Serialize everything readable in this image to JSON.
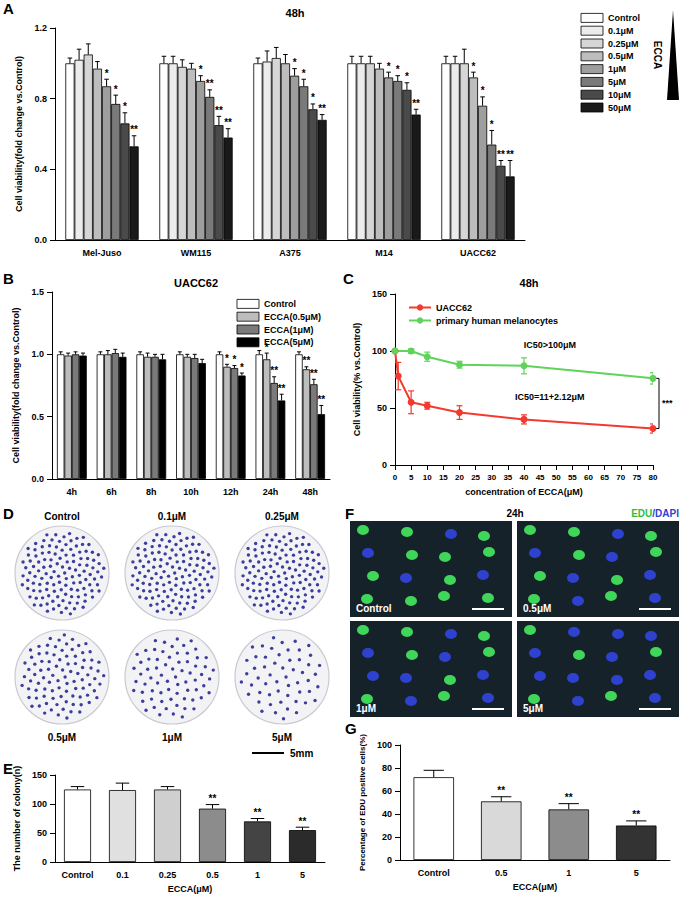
{
  "chart_data": [
    {
      "panel": "A",
      "type": "bar",
      "title": "48h",
      "ylabel": "Cell viability(fold change vs.Control)",
      "categories": [
        "Mel-Juso",
        "WM115",
        "A375",
        "M14",
        "UACC62"
      ],
      "ylim": [
        0,
        1.2
      ],
      "yticks": [
        {
          "value": 0,
          "label": "0.0"
        },
        0.4,
        0.8,
        1.2
      ],
      "grid": false,
      "legend": "right",
      "legend_title": "ECCA",
      "series": [
        {
          "name": "Control",
          "color": "#ffffff",
          "values": [
            1,
            1,
            1,
            1,
            1
          ],
          "errors": [
            0.03,
            0.04,
            0.03,
            0.04,
            0.04
          ],
          "annotations": [
            null,
            null,
            null,
            null,
            null
          ]
        },
        {
          "name": "0.1μM",
          "color": "#ececec",
          "values": [
            1.02,
            1.0,
            1.01,
            1.0,
            1.0
          ],
          "errors": [
            0.06,
            0.04,
            0.06,
            0.04,
            0.04
          ],
          "annotations": [
            null,
            null,
            null,
            null,
            null
          ]
        },
        {
          "name": "0.25μM",
          "color": "#d6d6d6",
          "values": [
            1.05,
            0.98,
            1.03,
            1.0,
            1.0
          ],
          "errors": [
            0.06,
            0.04,
            0.06,
            0.04,
            0.08
          ],
          "annotations": [
            null,
            null,
            null,
            null,
            null
          ]
        },
        {
          "name": "0.5μM",
          "color": "#bdbdbd",
          "values": [
            0.97,
            0.97,
            1.0,
            0.97,
            0.92
          ],
          "errors": [
            0.04,
            0.03,
            0.05,
            0.03,
            0.03
          ],
          "annotations": [
            null,
            null,
            null,
            null,
            "*"
          ]
        },
        {
          "name": "1μM",
          "color": "#9e9e9e",
          "values": [
            0.87,
            0.9,
            0.93,
            0.92,
            0.76
          ],
          "errors": [
            0.04,
            0.03,
            0.04,
            0.03,
            0.05
          ],
          "annotations": [
            "*",
            "*",
            "*",
            "*",
            "*"
          ]
        },
        {
          "name": "5μM",
          "color": "#7a7a7a",
          "values": [
            0.77,
            0.81,
            0.87,
            0.9,
            0.54
          ],
          "errors": [
            0.05,
            0.04,
            0.04,
            0.03,
            0.08
          ],
          "annotations": [
            "*",
            "**",
            "*",
            "*",
            "*"
          ]
        },
        {
          "name": "10μM",
          "color": "#4a4a4a",
          "values": [
            0.66,
            0.65,
            0.74,
            0.85,
            0.42
          ],
          "errors": [
            0.06,
            0.05,
            0.03,
            0.04,
            0.03
          ],
          "annotations": [
            "*",
            "**",
            "*",
            "*",
            "**"
          ]
        },
        {
          "name": "50μM",
          "color": "#1a1a1a",
          "values": [
            0.53,
            0.58,
            0.68,
            0.71,
            0.36
          ],
          "errors": [
            0.06,
            0.05,
            0.03,
            0.03,
            0.09
          ],
          "annotations": [
            "**",
            "**",
            "**",
            "**",
            "**"
          ]
        }
      ]
    },
    {
      "panel": "B",
      "type": "bar",
      "title": "UACC62",
      "ylabel": "Cell viability(fold change vs.Control)",
      "categories": [
        "4h",
        "6h",
        "8h",
        "10h",
        "12h",
        "24h",
        "48h"
      ],
      "ylim": [
        0,
        1.5
      ],
      "yticks": [
        {
          "value": 0,
          "label": "0.0"
        },
        0.5,
        {
          "value": 1,
          "label": "1.0"
        },
        1.5
      ],
      "grid": false,
      "legend": "top-right",
      "series": [
        {
          "name": "Control",
          "color": "#ffffff",
          "values": [
            1,
            1,
            1,
            1,
            1,
            1,
            1
          ],
          "errors": [
            0.02,
            0.02,
            0.02,
            0.02,
            0.02,
            0.03,
            0.02
          ],
          "annotations": [
            null,
            null,
            null,
            null,
            null,
            null,
            null
          ]
        },
        {
          "name": "ECCA(0.5μM)",
          "color": "#bdbdbd",
          "values": [
            0.99,
            1.0,
            0.98,
            0.98,
            0.9,
            0.96,
            0.88
          ],
          "errors": [
            0.02,
            0.03,
            0.03,
            0.02,
            0.02,
            0.05,
            0.02
          ],
          "annotations": [
            null,
            null,
            null,
            null,
            "*",
            "*",
            "**"
          ]
        },
        {
          "name": "ECCA(1μM)",
          "color": "#7a7a7a",
          "values": [
            1.0,
            1.01,
            0.98,
            0.97,
            0.89,
            0.77,
            0.76
          ],
          "errors": [
            0.02,
            0.03,
            0.02,
            0.03,
            0.02,
            0.05,
            0.04
          ],
          "annotations": [
            null,
            null,
            null,
            null,
            "*",
            "**",
            "**"
          ]
        },
        {
          "name": "ECCA(5μM)",
          "color": "#000000",
          "values": [
            0.99,
            0.98,
            0.96,
            0.93,
            0.83,
            0.63,
            0.52
          ],
          "errors": [
            0.02,
            0.03,
            0.04,
            0.03,
            0.02,
            0.05,
            0.07
          ],
          "annotations": [
            null,
            null,
            null,
            null,
            "*",
            "**",
            "**"
          ]
        }
      ]
    },
    {
      "panel": "C",
      "type": "line",
      "title": "48h",
      "xlabel": "concentration of ECCA(μM)",
      "ylabel": "Cell viability(% vs.Control)",
      "xlim": [
        0,
        80
      ],
      "xticks": [
        0,
        5,
        10,
        15,
        20,
        25,
        30,
        35,
        40,
        45,
        50,
        55,
        60,
        65,
        70,
        75,
        80
      ],
      "ylim": [
        0,
        150
      ],
      "yticks": [
        0,
        50,
        100,
        150
      ],
      "grid": false,
      "legend": "top-left",
      "marker": "circle",
      "annotations": [
        "IC50>100μM",
        "IC50=11+2.12μM",
        "***"
      ],
      "series": [
        {
          "name": "UACC62",
          "color": "#f23a2f",
          "x": [
            0,
            1,
            5,
            10,
            20,
            40,
            80
          ],
          "values": [
            100,
            78,
            55,
            52,
            46,
            40,
            32
          ],
          "errors": [
            0,
            12,
            10,
            3,
            6,
            4,
            4
          ]
        },
        {
          "name": "primary human melanocytes",
          "color": "#5fd35a",
          "x": [
            0,
            5,
            10,
            20,
            40,
            80
          ],
          "values": [
            100,
            100,
            95,
            88,
            87,
            76
          ],
          "errors": [
            0,
            2,
            4,
            3,
            7,
            5
          ]
        }
      ]
    },
    {
      "panel": "E",
      "type": "bar",
      "ylabel": "The number of colony(n)",
      "xlabel": "ECCA(μM)",
      "categories": [
        "Control",
        "0.1",
        "0.25",
        "0.5",
        "1",
        "5"
      ],
      "values": [
        125,
        124,
        125,
        92,
        70,
        55
      ],
      "errors": [
        5,
        12,
        5,
        7,
        5,
        5
      ],
      "annotations": [
        null,
        null,
        null,
        "**",
        "**",
        "**"
      ],
      "colors": [
        "#ffffff",
        "#e0e0e0",
        "#cfcfcf",
        "#8c8c8c",
        "#444444",
        "#2b2b2b"
      ],
      "ylim": [
        0,
        150
      ],
      "yticks": [
        0,
        50,
        100,
        150
      ],
      "grid": false
    },
    {
      "panel": "G",
      "type": "bar",
      "ylabel": "Percentage of EDU positive cells(%)",
      "xlabel": "ECCA(μM)",
      "categories": [
        "Control",
        "0.5",
        "1",
        "5"
      ],
      "values": [
        72,
        51,
        44,
        30
      ],
      "errors": [
        6,
        4,
        5,
        4
      ],
      "annotations": [
        null,
        "**",
        "**",
        "**"
      ],
      "colors": [
        "#ffffff",
        "#d9d9d9",
        "#8c8c8c",
        "#333333"
      ],
      "ylim": [
        0,
        100
      ],
      "yticks": [
        0,
        20,
        40,
        60,
        80,
        100
      ],
      "grid": false
    }
  ],
  "colony_plates": {
    "panel": "D",
    "labels": [
      "Control",
      "0.1μM",
      "0.25μM",
      "0.5μM",
      "1μM",
      "5μM"
    ],
    "scale_bar": "5mm"
  },
  "edu_images": {
    "panel": "F",
    "title": "24h",
    "stain": "EDU/DAPI",
    "labels": [
      "Control",
      "0.5μM",
      "1μM",
      "5μM"
    ]
  }
}
